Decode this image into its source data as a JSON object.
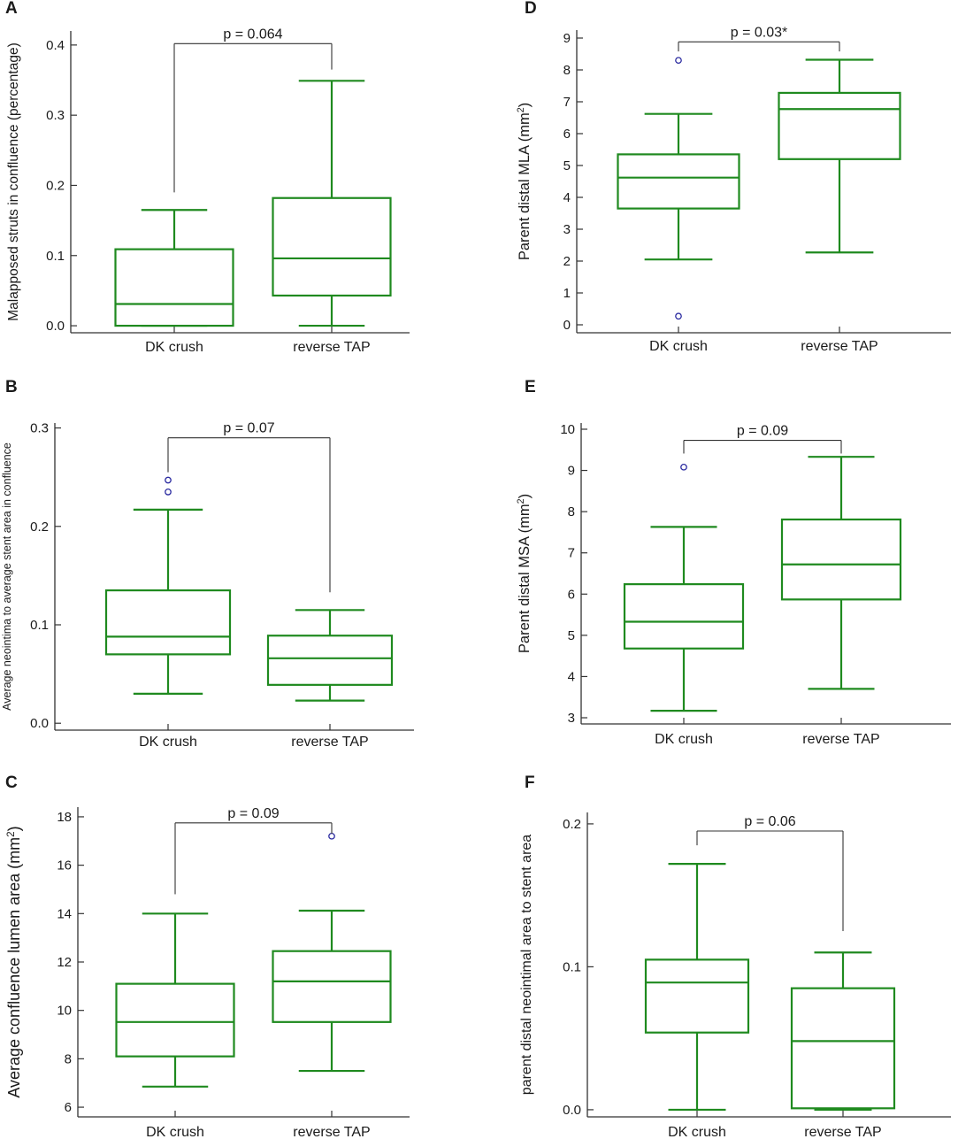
{
  "figure": {
    "colors": {
      "box": "#1f8a1f",
      "outlier": "#2a2aa0",
      "axis": "#333333",
      "bracket": "#333333"
    }
  },
  "chart_data": [
    {
      "panel": "A",
      "type": "box",
      "categories": [
        "DK crush",
        "reverse TAP"
      ],
      "ylabel": "Malapposed struts in confluence (percentage)",
      "ylim": [
        -0.01,
        0.42
      ],
      "yticks": [
        0.0,
        0.1,
        0.2,
        0.3,
        0.4
      ],
      "ytick_labels": [
        "0.0",
        "0.1",
        "0.2",
        "0.3",
        "0.4"
      ],
      "boxes": [
        {
          "whisker_low": 0.0,
          "q1": 0.0,
          "median": 0.031,
          "q3": 0.109,
          "whisker_high": 0.165,
          "outliers": []
        },
        {
          "whisker_low": 0.0,
          "q1": 0.043,
          "median": 0.096,
          "q3": 0.182,
          "whisker_high": 0.349,
          "outliers": []
        }
      ],
      "pvalue": "p = 0.064",
      "bracket_level": 0.402,
      "bracket_drop": [
        0.19,
        0.365
      ]
    },
    {
      "panel": "B",
      "type": "box",
      "categories": [
        "DK crush",
        "reverse TAP"
      ],
      "ylabel": "Average neointima to average stent area in confluence",
      "ylim": [
        -0.007,
        0.305
      ],
      "yticks": [
        0.0,
        0.1,
        0.2,
        0.3
      ],
      "ytick_labels": [
        "0.0",
        "0.1",
        "0.2",
        "0.3"
      ],
      "boxes": [
        {
          "whisker_low": 0.03,
          "q1": 0.07,
          "median": 0.088,
          "q3": 0.135,
          "whisker_high": 0.217,
          "outliers": [
            0.235,
            0.247
          ]
        },
        {
          "whisker_low": 0.023,
          "q1": 0.039,
          "median": 0.066,
          "q3": 0.089,
          "whisker_high": 0.115,
          "outliers": []
        }
      ],
      "pvalue": "p = 0.07",
      "bracket_level": 0.29,
      "bracket_drop": [
        0.255,
        0.133
      ]
    },
    {
      "panel": "C",
      "type": "box",
      "categories": [
        "DK crush",
        "reverse TAP"
      ],
      "ylabel": "Average confluence lumen area (mm²)",
      "ylabel_parts": [
        "Average confluence lumen area (mm",
        "2",
        ")"
      ],
      "ylim": [
        5.6,
        18.4
      ],
      "yticks": [
        6,
        8,
        10,
        12,
        14,
        16,
        18
      ],
      "ytick_labels": [
        "6",
        "8",
        "10",
        "12",
        "14",
        "16",
        "18"
      ],
      "boxes": [
        {
          "whisker_low": 6.85,
          "q1": 8.1,
          "median": 9.52,
          "q3": 11.1,
          "whisker_high": 14.0,
          "outliers": []
        },
        {
          "whisker_low": 7.5,
          "q1": 9.52,
          "median": 11.2,
          "q3": 12.45,
          "whisker_high": 14.12,
          "outliers": [
            17.2
          ]
        }
      ],
      "pvalue": "p = 0.09",
      "bracket_level": 17.75,
      "bracket_drop": [
        14.8,
        17.3
      ]
    },
    {
      "panel": "D",
      "type": "box",
      "categories": [
        "DK crush",
        "reverse TAP"
      ],
      "ylabel": "Parent distal MLA (mm²)",
      "ylabel_parts": [
        "Parent distal MLA (mm",
        "2",
        ")"
      ],
      "ylim": [
        -0.25,
        9.25
      ],
      "yticks": [
        0,
        1,
        2,
        3,
        4,
        5,
        6,
        7,
        8,
        9
      ],
      "ytick_labels": [
        "0",
        "1",
        "2",
        "3",
        "4",
        "5",
        "6",
        "7",
        "8",
        "9"
      ],
      "boxes": [
        {
          "whisker_low": 2.05,
          "q1": 3.65,
          "median": 4.62,
          "q3": 5.35,
          "whisker_high": 6.62,
          "outliers": [
            0.27,
            8.3
          ]
        },
        {
          "whisker_low": 2.27,
          "q1": 5.2,
          "median": 6.77,
          "q3": 7.28,
          "whisker_high": 8.32,
          "outliers": []
        }
      ],
      "pvalue": "p = 0.03*",
      "bracket_level": 8.88,
      "bracket_drop": [
        8.58,
        8.58
      ]
    },
    {
      "panel": "E",
      "type": "box",
      "categories": [
        "DK crush",
        "reverse TAP"
      ],
      "ylabel": "Parent distal MSA (mm²)",
      "ylabel_parts": [
        "Parent distal MSA (mm",
        "2",
        ")"
      ],
      "ylim": [
        2.85,
        10.15
      ],
      "yticks": [
        3,
        4,
        5,
        6,
        7,
        8,
        9,
        10
      ],
      "ytick_labels": [
        "3",
        "4",
        "5",
        "6",
        "7",
        "8",
        "9",
        "10"
      ],
      "boxes": [
        {
          "whisker_low": 3.17,
          "q1": 4.68,
          "median": 5.33,
          "q3": 6.24,
          "whisker_high": 7.63,
          "outliers": [
            9.08
          ]
        },
        {
          "whisker_low": 3.7,
          "q1": 5.87,
          "median": 6.72,
          "q3": 7.81,
          "whisker_high": 9.33,
          "outliers": []
        }
      ],
      "pvalue": "p = 0.09",
      "bracket_level": 9.73,
      "bracket_drop": [
        9.41,
        9.41
      ]
    },
    {
      "panel": "F",
      "type": "box",
      "categories": [
        "DK crush",
        "reverse TAP"
      ],
      "ylabel": "parent distal neointimal area to stent area",
      "ylim": [
        -0.005,
        0.208
      ],
      "yticks": [
        0.0,
        0.1,
        0.2
      ],
      "ytick_labels": [
        "0.0",
        "0.1",
        "0.2"
      ],
      "boxes": [
        {
          "whisker_low": 0.0,
          "q1": 0.054,
          "median": 0.089,
          "q3": 0.105,
          "whisker_high": 0.172,
          "outliers": []
        },
        {
          "whisker_low": 0.0,
          "q1": 0.001,
          "median": 0.048,
          "q3": 0.085,
          "whisker_high": 0.11,
          "outliers": []
        }
      ],
      "pvalue": "p = 0.06",
      "bracket_level": 0.195,
      "bracket_drop": [
        0.185,
        0.125
      ]
    }
  ]
}
